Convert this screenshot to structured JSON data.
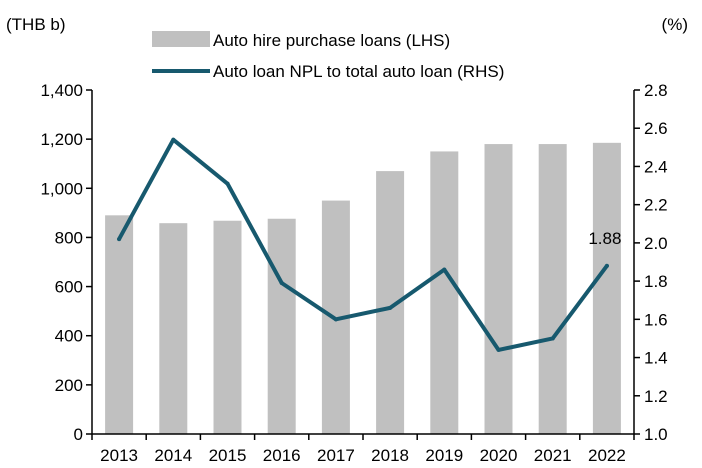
{
  "chart_data": {
    "type": "bar",
    "categories": [
      "2013",
      "2014",
      "2015",
      "2016",
      "2017",
      "2018",
      "2019",
      "2020",
      "2021",
      "2022"
    ],
    "left_unit": "(THB b)",
    "right_unit": "(%)",
    "y_left_lim": [
      0,
      1400
    ],
    "y_left_ticks": [
      "0",
      "200",
      "400",
      "600",
      "800",
      "1,000",
      "1,200",
      "1,400"
    ],
    "y_right_lim": [
      1.0,
      2.8
    ],
    "y_right_ticks": [
      "1.0",
      "1.2",
      "1.4",
      "1.6",
      "1.8",
      "2.0",
      "2.2",
      "2.4",
      "2.6",
      "2.8"
    ],
    "grid": false,
    "legend_position": "top",
    "series": [
      {
        "name": "Auto hire purchase loans (LHS)",
        "type": "bar",
        "axis": "left",
        "color": "#c0c0c0",
        "values": [
          890,
          858,
          868,
          876,
          950,
          1070,
          1150,
          1180,
          1180,
          1185
        ]
      },
      {
        "name": "Auto loan NPL to total auto loan (RHS)",
        "type": "line",
        "axis": "right",
        "color": "#17596e",
        "values": [
          2.02,
          2.54,
          2.31,
          1.79,
          1.6,
          1.66,
          1.86,
          1.44,
          1.5,
          1.88
        ]
      }
    ],
    "annotations": [
      {
        "series": 1,
        "index": 9,
        "text": "1.88"
      }
    ]
  }
}
